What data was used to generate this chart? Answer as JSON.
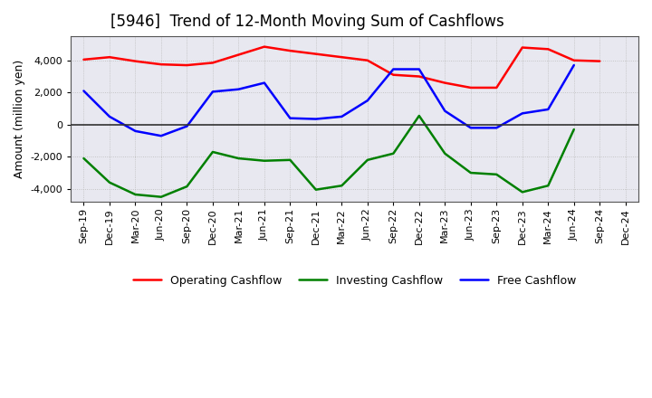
{
  "title": "[5946]  Trend of 12-Month Moving Sum of Cashflows",
  "ylabel": "Amount (million yen)",
  "xlabels": [
    "Sep-19",
    "Dec-19",
    "Mar-20",
    "Jun-20",
    "Sep-20",
    "Dec-20",
    "Mar-21",
    "Jun-21",
    "Sep-21",
    "Dec-21",
    "Mar-22",
    "Jun-22",
    "Sep-22",
    "Dec-22",
    "Mar-23",
    "Jun-23",
    "Sep-23",
    "Dec-23",
    "Mar-24",
    "Jun-24",
    "Sep-24",
    "Dec-24"
  ],
  "operating": [
    4050,
    4200,
    3950,
    3750,
    3700,
    3850,
    4350,
    4850,
    4600,
    4400,
    4200,
    4000,
    3100,
    3000,
    2600,
    2300,
    2300,
    4800,
    4700,
    4000,
    3950,
    null
  ],
  "investing": [
    -2100,
    -3600,
    -4350,
    -4500,
    -3850,
    -1700,
    -2100,
    -2250,
    -2200,
    -4050,
    -3800,
    -2200,
    -1800,
    550,
    -1800,
    -3000,
    -3100,
    -4200,
    -3800,
    -300,
    null,
    null
  ],
  "free": [
    2100,
    500,
    -400,
    -700,
    -100,
    2050,
    2200,
    2600,
    400,
    350,
    500,
    1500,
    3450,
    3450,
    850,
    -200,
    -200,
    700,
    950,
    3700,
    null,
    null
  ],
  "operating_color": "#FF0000",
  "investing_color": "#008000",
  "free_color": "#0000FF",
  "ylim": [
    -4800,
    5500
  ],
  "yticks": [
    -4000,
    -2000,
    0,
    2000,
    4000
  ],
  "plot_bg_color": "#E8E8F0",
  "background_color": "#FFFFFF",
  "grid_color": "#BBBBBB"
}
